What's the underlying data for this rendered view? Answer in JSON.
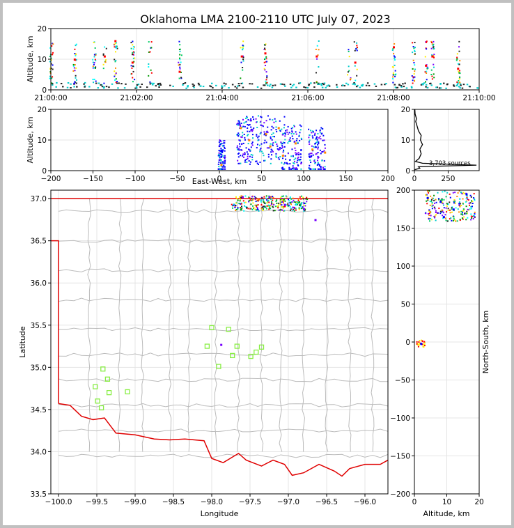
{
  "title": "Oklahoma LMA 2100-2110 UTC July 07, 2023",
  "colors": {
    "state_border": "#e00000",
    "county_lines": "#bbbbbb",
    "station_marker": "#88ee44",
    "background": "#ffffff",
    "window_bg": "#c0c0c0"
  },
  "chart_data": [
    {
      "type": "scatter",
      "panel": "altitude-time",
      "xlabel": "",
      "ylabel": "Altitude, km",
      "xlim": [
        "21:00:00",
        "21:10:00"
      ],
      "ylim": [
        0,
        20
      ],
      "xticks": [
        "21:00:00",
        "21:02:00",
        "21:04:00",
        "21:06:00",
        "21:08:00",
        "21:10:00"
      ],
      "yticks": [
        0,
        10,
        20
      ],
      "burst_times_minutes": [
        0.0,
        0.55,
        1.0,
        1.25,
        1.5,
        1.9,
        2.3,
        3.0,
        4.45,
        5.0,
        6.2,
        6.95,
        7.1,
        8.0,
        8.45,
        8.75,
        8.9,
        9.5
      ],
      "points": [
        {
          "t": 0.55,
          "alt": 10
        },
        {
          "t": 1.25,
          "alt": 11
        },
        {
          "t": 1.5,
          "alt": 16
        },
        {
          "t": 1.9,
          "alt": 9
        },
        {
          "t": 3.0,
          "alt": 6
        },
        {
          "t": 4.45,
          "alt": 11
        },
        {
          "t": 5.0,
          "alt": 12
        },
        {
          "t": 6.2,
          "alt": 11
        },
        {
          "t": 7.1,
          "alt": 9
        },
        {
          "t": 8.0,
          "alt": 14
        },
        {
          "t": 8.75,
          "alt": 8
        },
        {
          "t": 8.9,
          "alt": 11
        },
        {
          "t": 9.5,
          "alt": 7
        }
      ]
    },
    {
      "type": "scatter",
      "panel": "altitude-east-west",
      "xlabel": "East-West, km",
      "ylabel": "Altitude, km",
      "xlim": [
        -200,
        200
      ],
      "ylim": [
        0,
        20
      ],
      "xticks": [
        -200,
        -150,
        -100,
        -50,
        0,
        50,
        100,
        150,
        200
      ],
      "yticks": [
        0,
        10,
        20
      ],
      "points": [
        {
          "x": 2,
          "alt": 2
        },
        {
          "x": 25,
          "alt": 14
        },
        {
          "x": 35,
          "alt": 10
        },
        {
          "x": 55,
          "alt": 12
        },
        {
          "x": 60,
          "alt": 8
        },
        {
          "x": 70,
          "alt": 14
        },
        {
          "x": 75,
          "alt": 5
        },
        {
          "x": 90,
          "alt": 9
        },
        {
          "x": 110,
          "alt": 7
        },
        {
          "x": 125,
          "alt": 6
        }
      ]
    },
    {
      "type": "line",
      "panel": "altitude-histogram",
      "xlabel": "",
      "ylabel": "",
      "xlim": [
        0,
        480
      ],
      "ylim": [
        0,
        20
      ],
      "xticks": [
        0,
        250
      ],
      "yticks": [
        0,
        10,
        20
      ],
      "annotation": "3,703 sources",
      "profile": [
        {
          "count": 0,
          "alt": 0.3
        },
        {
          "count": 40,
          "alt": 0.8
        },
        {
          "count": 30,
          "alt": 1.3
        },
        {
          "count": 460,
          "alt": 1.8
        },
        {
          "count": 60,
          "alt": 2.4
        },
        {
          "count": 8,
          "alt": 3.0
        },
        {
          "count": 35,
          "alt": 4.0
        },
        {
          "count": 50,
          "alt": 5.5
        },
        {
          "count": 40,
          "alt": 7.0
        },
        {
          "count": 60,
          "alt": 8.5
        },
        {
          "count": 45,
          "alt": 10.0
        },
        {
          "count": 50,
          "alt": 11.5
        },
        {
          "count": 30,
          "alt": 13.0
        },
        {
          "count": 20,
          "alt": 14.5
        },
        {
          "count": 10,
          "alt": 16.0
        },
        {
          "count": 15,
          "alt": 17.0
        },
        {
          "count": 5,
          "alt": 18.5
        },
        {
          "count": 3,
          "alt": 20.0
        }
      ]
    },
    {
      "type": "scatter",
      "panel": "plan-view",
      "xlabel": "Longitude",
      "ylabel": "Latitude",
      "xlim": [
        -100.1,
        -95.7
      ],
      "ylim": [
        33.5,
        37.1
      ],
      "xticks": [
        "-100.0",
        "-99.5",
        "-99.0",
        "-98.5",
        "-98.0",
        "-97.5",
        "-97.0",
        "-96.5",
        "-96.0"
      ],
      "yticks": [
        "33.5",
        "34.0",
        "34.5",
        "35.0",
        "35.5",
        "36.0",
        "36.5",
        "37.0"
      ],
      "stations": [
        {
          "lon": -98.0,
          "lat": 35.47
        },
        {
          "lon": -97.78,
          "lat": 35.45
        },
        {
          "lon": -98.06,
          "lat": 35.25
        },
        {
          "lon": -97.91,
          "lat": 35.01
        },
        {
          "lon": -97.73,
          "lat": 35.14
        },
        {
          "lon": -97.67,
          "lat": 35.25
        },
        {
          "lon": -97.49,
          "lat": 35.13
        },
        {
          "lon": -97.42,
          "lat": 35.18
        },
        {
          "lon": -97.35,
          "lat": 35.24
        },
        {
          "lon": -99.42,
          "lat": 34.98
        },
        {
          "lon": -99.36,
          "lat": 34.86
        },
        {
          "lon": -99.52,
          "lat": 34.77
        },
        {
          "lon": -99.34,
          "lat": 34.7
        },
        {
          "lon": -99.1,
          "lat": 34.71
        },
        {
          "lon": -99.49,
          "lat": 34.6
        },
        {
          "lon": -99.44,
          "lat": 34.52
        }
      ],
      "sources": [
        {
          "lon": -97.88,
          "lat": 35.27
        },
        {
          "lon": -97.6,
          "lat": 37.02
        },
        {
          "lon": -97.25,
          "lat": 37.02
        },
        {
          "lon": -97.05,
          "lat": 36.93
        },
        {
          "lon": -96.8,
          "lat": 36.88
        },
        {
          "lon": -96.65,
          "lat": 36.75
        }
      ]
    },
    {
      "type": "scatter",
      "panel": "north-south-altitude",
      "xlabel": "Altitude, km",
      "ylabel": "North-South, km",
      "xlim": [
        0,
        20
      ],
      "ylim": [
        -200,
        200
      ],
      "xticks": [
        0,
        10,
        20
      ],
      "yticks": [
        -200,
        -150,
        -100,
        -50,
        0,
        50,
        100,
        150,
        200
      ],
      "points": [
        {
          "alt": 2,
          "ns": -2
        },
        {
          "alt": 4,
          "ns": 190
        },
        {
          "alt": 8,
          "ns": 185
        },
        {
          "alt": 12,
          "ns": 175
        },
        {
          "alt": 16,
          "ns": 195
        },
        {
          "alt": 9,
          "ns": 165
        }
      ]
    }
  ]
}
